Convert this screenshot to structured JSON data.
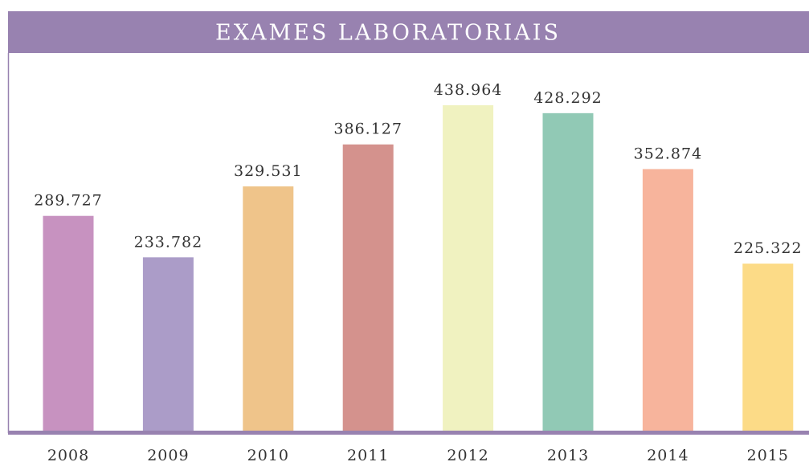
{
  "chart_data": {
    "type": "bar",
    "title": "EXAMES LABORATORIAIS",
    "categories": [
      "2008",
      "2009",
      "2010",
      "2011",
      "2012",
      "2013",
      "2014",
      "2015"
    ],
    "values": [
      289727,
      233782,
      329531,
      386127,
      438964,
      428292,
      352874,
      225322
    ],
    "value_labels": [
      "289.727",
      "233.782",
      "329.531",
      "386.127",
      "438.964",
      "428.292",
      "352.874",
      "225.322"
    ],
    "colors": [
      "#c792c0",
      "#ab9cc8",
      "#efc48a",
      "#d4928d",
      "#f0f2c0",
      "#91c9b5",
      "#f7b49c",
      "#fcdb87"
    ]
  }
}
